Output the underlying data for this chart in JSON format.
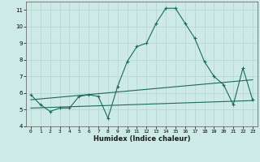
{
  "title": "",
  "xlabel": "Humidex (Indice chaleur)",
  "background_color": "#ceeae6",
  "grid_color": "#b8d8d4",
  "line_color": "#1a6b5a",
  "xlim": [
    -0.5,
    23.5
  ],
  "ylim": [
    4.0,
    11.5
  ],
  "yticks": [
    4,
    5,
    6,
    7,
    8,
    9,
    10,
    11
  ],
  "xticks": [
    0,
    1,
    2,
    3,
    4,
    5,
    6,
    7,
    8,
    9,
    10,
    11,
    12,
    13,
    14,
    15,
    16,
    17,
    18,
    19,
    20,
    21,
    22,
    23
  ],
  "line1_x": [
    0,
    1,
    2,
    3,
    4,
    5,
    6,
    7,
    8,
    9,
    10,
    11,
    12,
    13,
    14,
    15,
    16,
    17,
    18,
    19,
    20,
    21,
    22,
    23
  ],
  "line1_y": [
    5.9,
    5.3,
    4.9,
    5.1,
    5.1,
    5.8,
    5.9,
    5.8,
    4.5,
    6.4,
    7.9,
    8.8,
    9.0,
    10.2,
    11.1,
    11.1,
    10.2,
    9.3,
    7.9,
    7.0,
    6.5,
    5.3,
    7.5,
    5.6
  ],
  "line2_x": [
    0,
    23
  ],
  "line2_y": [
    5.6,
    6.8
  ],
  "line3_x": [
    0,
    23
  ],
  "line3_y": [
    5.1,
    5.55
  ]
}
